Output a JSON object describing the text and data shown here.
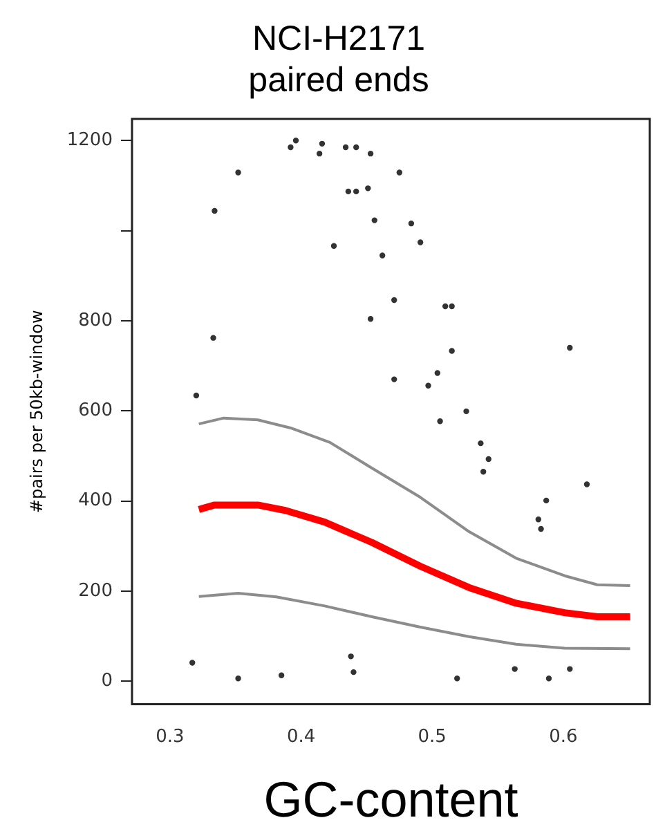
{
  "chart_data": {
    "type": "scatter",
    "title": "NCI-H2171\npaired ends",
    "xlabel": "GC-content",
    "ylabel": "#pairs per 50kb-window",
    "xlim": [
      0.271,
      0.666
    ],
    "xticks": [
      0.3,
      0.4,
      0.5,
      0.6
    ],
    "ylim": [
      -51,
      1248
    ],
    "yticks": [
      0,
      200,
      400,
      600,
      800,
      {
        "value": 1000,
        "label": null
      },
      1200
    ],
    "grid": false,
    "legend": false,
    "series": [
      {
        "color": "#333333",
        "marker": "circle",
        "x": [
          0.32,
          0.333,
          0.334,
          0.352,
          0.392,
          0.396,
          0.414,
          0.416,
          0.434,
          0.442,
          0.453,
          0.475,
          0.436,
          0.442,
          0.451,
          0.456,
          0.484,
          0.491,
          0.425,
          0.462,
          0.471,
          0.51,
          0.515,
          0.453,
          0.515,
          0.605,
          0.504,
          0.471,
          0.497,
          0.526,
          0.506,
          0.537,
          0.543,
          0.539,
          0.587,
          0.581,
          0.583,
          0.618,
          0.317,
          0.352,
          0.385,
          0.438,
          0.44,
          0.519,
          0.563,
          0.589,
          0.605
        ],
        "values": [
          634,
          762,
          1044,
          1129,
          1185,
          1200,
          1171,
          1193,
          1185,
          1185,
          1171,
          1129,
          1087,
          1087,
          1094,
          1023,
          1016,
          974,
          966,
          945,
          846,
          832,
          832,
          804,
          733,
          740,
          684,
          670,
          656,
          599,
          577,
          528,
          493,
          465,
          401,
          359,
          338,
          437,
          41,
          6,
          13,
          55,
          20,
          6,
          27,
          6,
          27
        ]
      },
      {
        "type": "line",
        "color": "#8c8c8c",
        "marker": "none",
        "x": [
          0.322,
          0.341,
          0.367,
          0.392,
          0.422,
          0.454,
          0.491,
          0.528,
          0.564,
          0.601,
          0.626,
          0.651
        ],
        "values": [
          571,
          584,
          580,
          562,
          530,
          473,
          408,
          332,
          273,
          234,
          214,
          212
        ]
      },
      {
        "type": "line",
        "color": "#8c8c8c",
        "marker": "none",
        "x": [
          0.322,
          0.352,
          0.381,
          0.418,
          0.454,
          0.491,
          0.528,
          0.564,
          0.601,
          0.651
        ],
        "values": [
          188,
          195,
          187,
          167,
          143,
          120,
          99,
          82,
          73,
          72
        ]
      },
      {
        "type": "line",
        "color": "#ff0000",
        "marker": "none",
        "x": [
          0.322,
          0.334,
          0.367,
          0.388,
          0.418,
          0.454,
          0.491,
          0.528,
          0.564,
          0.601,
          0.626,
          0.651
        ],
        "values": [
          381,
          391,
          391,
          379,
          353,
          308,
          255,
          208,
          173,
          152,
          143,
          143
        ]
      }
    ]
  }
}
